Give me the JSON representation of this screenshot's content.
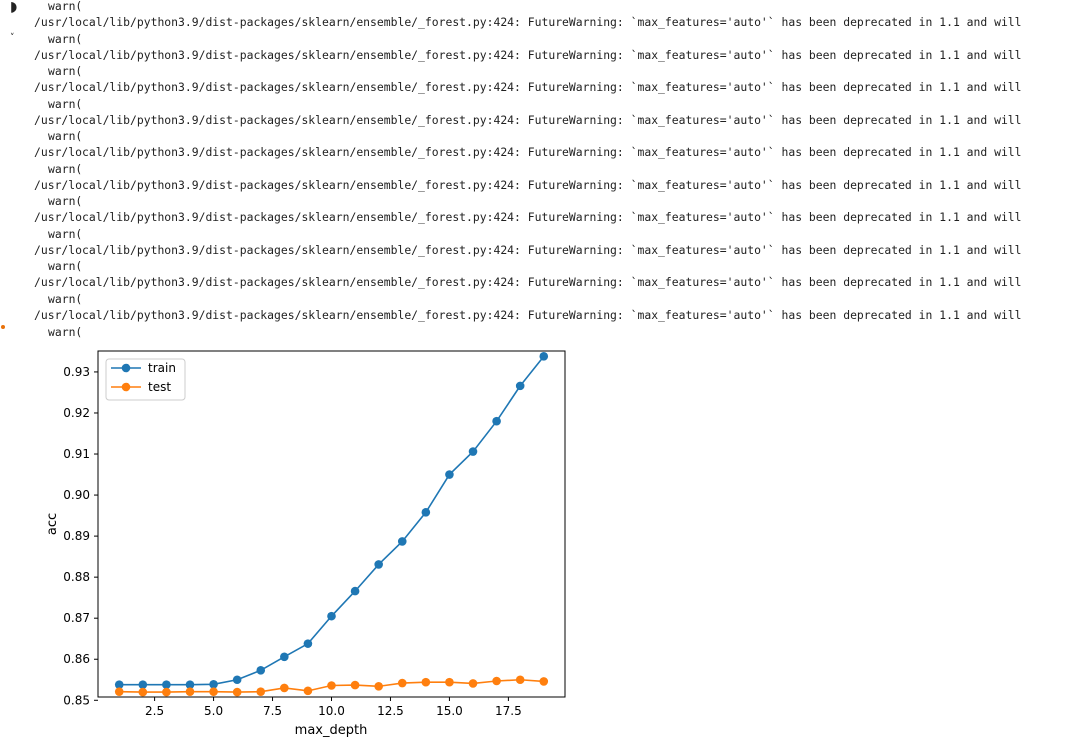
{
  "output": {
    "warn_text": "warn(",
    "warning_text": "/usr/local/lib/python3.9/dist-packages/sklearn/ensemble/_forest.py:424: FutureWarning: `max_features='auto'` has been deprecated in 1.1 and will",
    "warning_count": 10
  },
  "gutter": {
    "icon_top": "run-indicator-icon",
    "icon_mid": "collapse-arrow-icon",
    "icon_dot": "orange-dot-icon",
    "dot_color": "#e8710a"
  },
  "chart_data": {
    "type": "line",
    "xlabel": "max_depth",
    "ylabel": "acc",
    "x": [
      1,
      2,
      3,
      4,
      5,
      6,
      7,
      8,
      9,
      10,
      11,
      12,
      13,
      14,
      15,
      16,
      17,
      18,
      19
    ],
    "series": [
      {
        "name": "train",
        "color": "#1f77b4",
        "values": [
          0.8538,
          0.8538,
          0.8538,
          0.8538,
          0.8539,
          0.855,
          0.8573,
          0.8606,
          0.8638,
          0.8705,
          0.8766,
          0.8831,
          0.8887,
          0.8958,
          0.905,
          0.9106,
          0.918,
          0.9266,
          0.9338
        ]
      },
      {
        "name": "test",
        "color": "#ff7f0e",
        "values": [
          0.8521,
          0.852,
          0.852,
          0.8521,
          0.8521,
          0.852,
          0.8521,
          0.853,
          0.8523,
          0.8536,
          0.8537,
          0.8534,
          0.8542,
          0.8544,
          0.8544,
          0.8541,
          0.8547,
          0.855,
          0.8546
        ]
      }
    ],
    "xticks": [
      2.5,
      5.0,
      7.5,
      10.0,
      12.5,
      15.0,
      17.5
    ],
    "yticks": [
      0.85,
      0.86,
      0.87,
      0.88,
      0.89,
      0.9,
      0.91,
      0.92,
      0.93
    ],
    "xlim": [
      0.1,
      19.9
    ],
    "ylim": [
      0.8508,
      0.9351
    ],
    "legend": "upper-left",
    "grid": false
  }
}
